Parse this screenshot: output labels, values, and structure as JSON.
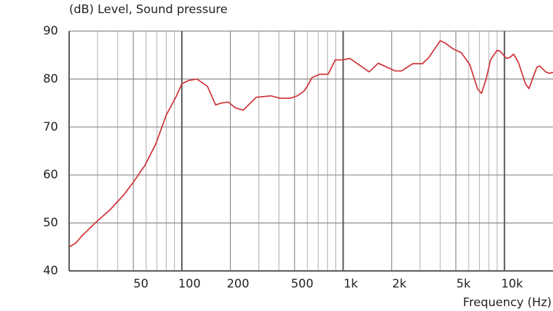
{
  "chart_data": {
    "type": "line",
    "y_label": "(dB)  Level, Sound pressure",
    "x_label": "Frequency  (Hz)",
    "xscale": "log",
    "xlim": [
      20,
      20000
    ],
    "ylim": [
      40,
      90
    ],
    "xticks": [
      50,
      100,
      200,
      500,
      {
        "value": 1000,
        "label": "1k"
      },
      {
        "value": 2000,
        "label": "2k"
      },
      {
        "value": 5000,
        "label": "5k"
      },
      {
        "value": 10000,
        "label": "10k"
      }
    ],
    "x_minor_grid": [
      30,
      40,
      60,
      70,
      80,
      90,
      300,
      400,
      600,
      700,
      800,
      900,
      3000,
      4000,
      6000,
      7000,
      8000,
      9000
    ],
    "yticks": [
      40,
      50,
      60,
      70,
      80,
      90
    ],
    "grid": true,
    "series": [
      {
        "color": "#d0343a",
        "x": [
          20,
          22,
          24,
          29,
          36,
          44,
          50,
          59,
          69,
          80,
          92,
          100,
          110,
          124,
          144,
          162,
          175,
          194,
          215,
          240,
          289,
          357,
          406,
          470,
          520,
          572,
          612,
          640,
          716,
          807,
          894,
          1000,
          1100,
          1450,
          1650,
          2100,
          2300,
          2700,
          3100,
          3400,
          4000,
          4300,
          4800,
          5400,
          6100,
          6800,
          7200,
          7700,
          8200,
          9000,
          9400,
          10300,
          10800,
          11400,
          12200,
          13500,
          14200,
          14900,
          15900,
          16600,
          18000,
          19000,
          20000
        ],
        "values": [
          45,
          45.8,
          47.3,
          50,
          52.8,
          56,
          58.5,
          62,
          66.5,
          72.5,
          76.3,
          79,
          79.7,
          80,
          78.5,
          74.6,
          75,
          75.2,
          74,
          73.5,
          76.2,
          76.5,
          76,
          76,
          76.5,
          77.5,
          79,
          80.3,
          81,
          81,
          84,
          84,
          84.3,
          81.5,
          83.3,
          81.7,
          81.7,
          83.2,
          83.2,
          84.5,
          88,
          87.5,
          86.3,
          85.5,
          83,
          78,
          77,
          80,
          84,
          86,
          85.8,
          84.3,
          84.5,
          85.2,
          83.5,
          79,
          78,
          80,
          82.5,
          82.7,
          81.5,
          81.2,
          81.4
        ]
      }
    ]
  }
}
